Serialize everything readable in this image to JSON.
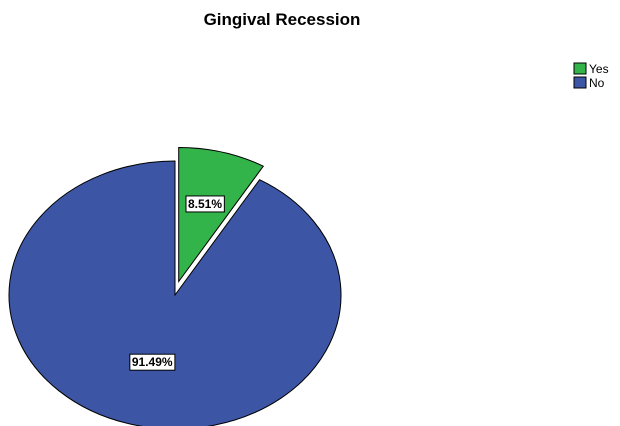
{
  "chart_data": {
    "type": "pie",
    "title": "Gingival Recession",
    "slices": [
      {
        "label": "Yes",
        "value": 8.51,
        "display": "8.51%",
        "color": "#33b44a",
        "exploded": true
      },
      {
        "label": "No",
        "value": 91.49,
        "display": "91.49%",
        "color": "#3c55a5",
        "exploded": false
      }
    ],
    "legend": {
      "position": "top-right",
      "entries": [
        "Yes",
        "No"
      ]
    },
    "start_angle_deg": 0,
    "direction": "clockwise"
  }
}
